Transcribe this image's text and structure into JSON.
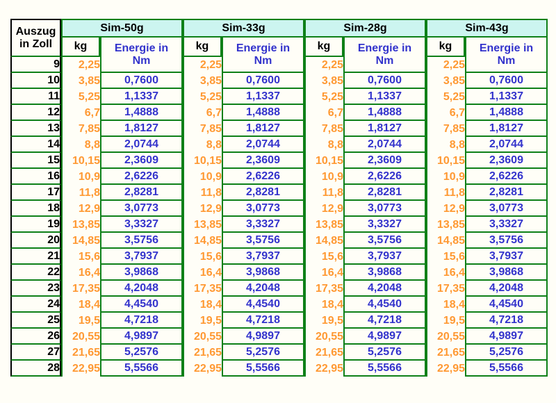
{
  "page": {
    "background": "#FFFEF7"
  },
  "labels": {
    "corner_line1": "Auszug",
    "corner_line2": "in Zoll",
    "kg_header": "kg",
    "energie_line1": "Energie in",
    "energie_line2": "Nm"
  },
  "colors": {
    "grid_green": "#0E8018",
    "corner_border_black": "#000000",
    "group_header_bg": "#CCF5F0",
    "kg_text_orange": "#FF9933",
    "energie_text_blue": "#3333CC",
    "header_text_black": "#000000"
  },
  "chart_data": {
    "type": "table",
    "row_header": "Auszug in Zoll",
    "columns_per_group": [
      "kg",
      "Energie in Nm"
    ],
    "zoll": [
      "9",
      "10",
      "11",
      "12",
      "13",
      "14",
      "15",
      "16",
      "17",
      "18",
      "19",
      "20",
      "21",
      "22",
      "23",
      "24",
      "25",
      "26",
      "27",
      "28"
    ],
    "series": [
      {
        "name": "Sim-50g",
        "kg": [
          "2,25",
          "3,85",
          "5,25",
          "6,7",
          "7,85",
          "8,8",
          "10,15",
          "10,9",
          "11,8",
          "12,9",
          "13,85",
          "14,85",
          "15,6",
          "16,4",
          "17,35",
          "18,4",
          "19,5",
          "20,55",
          "21,65",
          "22,95"
        ],
        "energie": [
          null,
          "0,7600",
          "1,1337",
          "1,4888",
          "1,8127",
          "2,0744",
          "2,3609",
          "2,6226",
          "2,8281",
          "3,0773",
          "3,3327",
          "3,5756",
          "3,7937",
          "3,9868",
          "4,2048",
          "4,4540",
          "4,7218",
          "4,9897",
          "5,2576",
          "5,5566"
        ]
      },
      {
        "name": "Sim-33g",
        "kg": [
          "2,25",
          "3,85",
          "5,25",
          "6,7",
          "7,85",
          "8,8",
          "10,15",
          "10,9",
          "11,8",
          "12,9",
          "13,85",
          "14,85",
          "15,6",
          "16,4",
          "17,35",
          "18,4",
          "19,5",
          "20,55",
          "21,65",
          "22,95"
        ],
        "energie": [
          null,
          "0,7600",
          "1,1337",
          "1,4888",
          "1,8127",
          "2,0744",
          "2,3609",
          "2,6226",
          "2,8281",
          "3,0773",
          "3,3327",
          "3,5756",
          "3,7937",
          "3,9868",
          "4,2048",
          "4,4540",
          "4,7218",
          "4,9897",
          "5,2576",
          "5,5566"
        ]
      },
      {
        "name": "Sim-28g",
        "kg": [
          "2,25",
          "3,85",
          "5,25",
          "6,7",
          "7,85",
          "8,8",
          "10,15",
          "10,9",
          "11,8",
          "12,9",
          "13,85",
          "14,85",
          "15,6",
          "16,4",
          "17,35",
          "18,4",
          "19,5",
          "20,55",
          "21,65",
          "22,95"
        ],
        "energie": [
          null,
          "0,7600",
          "1,1337",
          "1,4888",
          "1,8127",
          "2,0744",
          "2,3609",
          "2,6226",
          "2,8281",
          "3,0773",
          "3,3327",
          "3,5756",
          "3,7937",
          "3,9868",
          "4,2048",
          "4,4540",
          "4,7218",
          "4,9897",
          "5,2576",
          "5,5566"
        ]
      },
      {
        "name": "Sim-43g",
        "kg": [
          "2,25",
          "3,85",
          "5,25",
          "6,7",
          "7,85",
          "8,8",
          "10,15",
          "10,9",
          "11,8",
          "12,9",
          "13,85",
          "14,85",
          "15,6",
          "16,4",
          "17,35",
          "18,4",
          "19,5",
          "20,55",
          "21,65",
          "22,95"
        ],
        "energie": [
          null,
          "0,7600",
          "1,1337",
          "1,4888",
          "1,8127",
          "2,0744",
          "2,3609",
          "2,6226",
          "2,8281",
          "3,0773",
          "3,3327",
          "3,5756",
          "3,7937",
          "3,9868",
          "4,2048",
          "4,4540",
          "4,7218",
          "4,9897",
          "5,2576",
          "5,5566"
        ]
      }
    ]
  }
}
